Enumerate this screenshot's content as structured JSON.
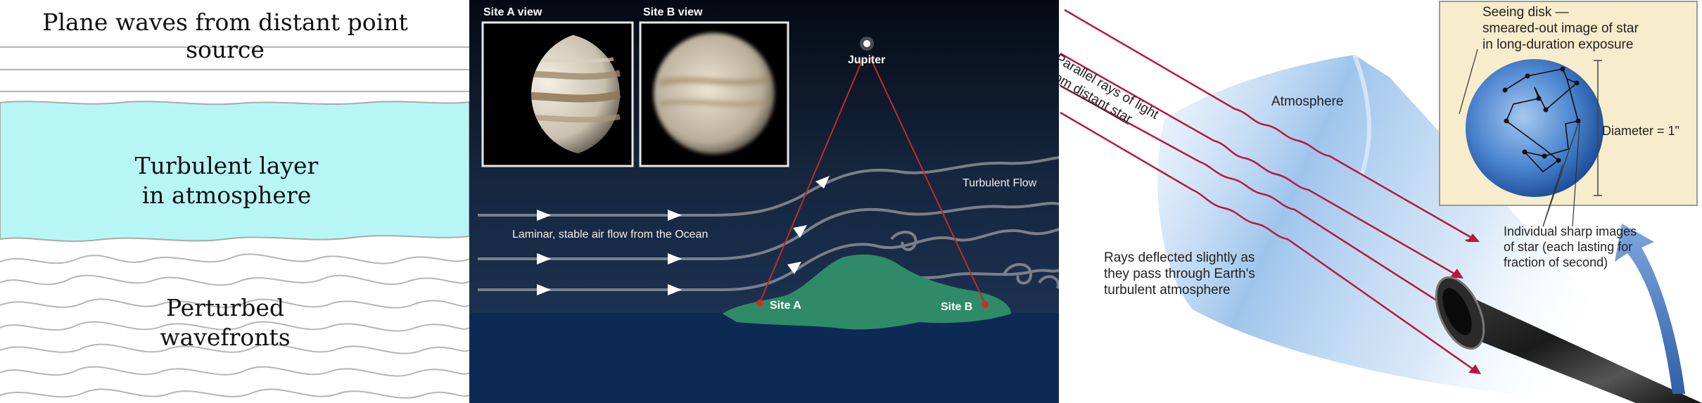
{
  "panel1": {
    "title": "Plane waves from distant point source",
    "layer_line1": "Turbulent layer",
    "layer_line2": "in atmosphere",
    "perturbed_line1": "Perturbed",
    "perturbed_line2": "wavefronts",
    "colors": {
      "layer": "#b8f6f6",
      "wave": "#b5b5b5"
    }
  },
  "panel2": {
    "site_a_view": "Site A view",
    "site_b_view": "Site B view",
    "jupiter": "Jupiter",
    "turbulent_flow": "Turbulent Flow",
    "laminar": "Laminar, stable air flow from the Ocean",
    "site_a": "Site A",
    "site_b": "Site B",
    "colors": {
      "sky": "#0c1a2e",
      "ocean": "#0d2a55",
      "island": "#2f8a67",
      "ray": "#c0282e"
    }
  },
  "panel3": {
    "parallel_line1": "Parallel rays of light",
    "parallel_line2": "from distant star",
    "atmosphere": "Atmosphere",
    "deflected_line1": "Rays deflected slightly as",
    "deflected_line2": "they pass through Earth's",
    "deflected_line3": "turbulent atmosphere",
    "seeing_line1": "Seeing disk —",
    "seeing_line2": "smeared-out image of star",
    "seeing_line3": "in long-duration exposure",
    "diameter": "Diameter = 1\"",
    "individual_line1": "Individual sharp images",
    "individual_line2": "of star (each lasting for",
    "individual_line3": "fraction of second)",
    "colors": {
      "inset": "#f7eccb",
      "disk": "#3f78c8",
      "ray": "#b8183f",
      "arrow": "#4f7fc0"
    }
  }
}
